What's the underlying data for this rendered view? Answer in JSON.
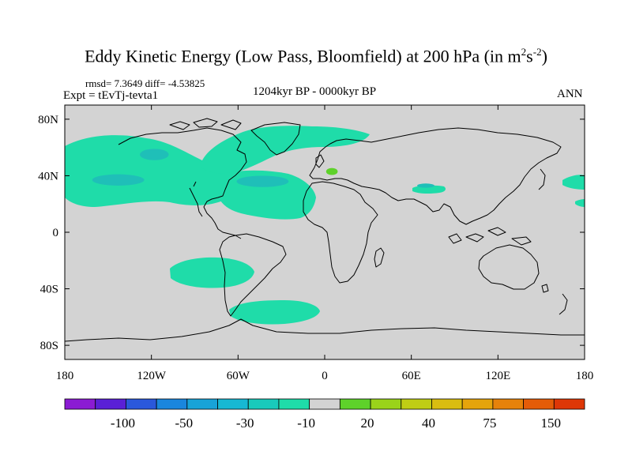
{
  "title": {
    "main": "Eddy Kinetic Energy (Low Pass, Bloomfield) at 200 hPa (in m",
    "sup1": "2",
    "mid": "s",
    "sup2": "-2",
    "end": ")"
  },
  "stats": "rmsd= 7.3649 diff= -4.53825",
  "experiment": "Expt = tEvTj-tevta1",
  "period": "1204kyr BP - 0000kyr BP",
  "season": "ANN",
  "map": {
    "lat_labels": [
      "80N",
      "40N",
      "0",
      "40S",
      "80S"
    ],
    "lat_values": [
      80,
      40,
      0,
      -40,
      -80
    ],
    "lon_labels": [
      "180",
      "120W",
      "60W",
      "0",
      "60E",
      "120E",
      "180"
    ],
    "lon_values": [
      -180,
      -120,
      -60,
      0,
      60,
      120,
      180
    ],
    "lat_range": [
      -90,
      90
    ],
    "lon_range": [
      -180,
      180
    ],
    "background_color": "#d3d3d3",
    "coastline_color": "#000000"
  },
  "field_regions": [
    {
      "id": "npacific-core",
      "color": "#1fbfb8",
      "lon": -143,
      "lat": 37,
      "rx": 18,
      "ry": 4
    },
    {
      "id": "namerica-core",
      "color": "#1fbfb8",
      "lon": -118,
      "lat": 55,
      "rx": 10,
      "ry": 4
    },
    {
      "id": "natlantic-core",
      "color": "#1fbfb8",
      "lon": -43,
      "lat": 36,
      "rx": 18,
      "ry": 4
    },
    {
      "id": "europe-positive",
      "color": "#5ed22a",
      "lon": 5,
      "lat": 43,
      "rx": 4,
      "ry": 2.5
    },
    {
      "id": "indian-ocean-core",
      "color": "#1fbfb8",
      "lon": 70,
      "lat": 33,
      "rx": 6,
      "ry": 1.5
    }
  ],
  "colorbar": {
    "labels": [
      "-100",
      "-50",
      "-30",
      "-10",
      "20",
      "40",
      "75",
      "150"
    ],
    "colors": [
      "#8b1bd3",
      "#5a20d6",
      "#2a58db",
      "#1a86dd",
      "#18a3d8",
      "#17b8d3",
      "#19cabb",
      "#1fdca9",
      "#d3d3d3",
      "#5ed22a",
      "#9ad31a",
      "#bfcd14",
      "#d9bd10",
      "#e5a40c",
      "#e6820a",
      "#e45c08",
      "#de3707"
    ]
  }
}
